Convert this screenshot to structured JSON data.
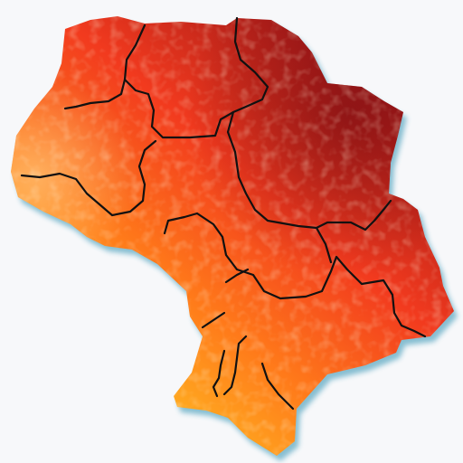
{
  "map": {
    "type": "choropleth",
    "background_color": "#f7f8fa",
    "shadow_color": "#2a8fb0",
    "border_color": "#111111",
    "color_scale": {
      "low": "#8fd63a",
      "mid_low": "#ffb020",
      "mid": "#ff7a1a",
      "mid_high": "#f23a1e",
      "high": "#8a0e16"
    },
    "labels_shown": false,
    "legend_shown": false
  }
}
